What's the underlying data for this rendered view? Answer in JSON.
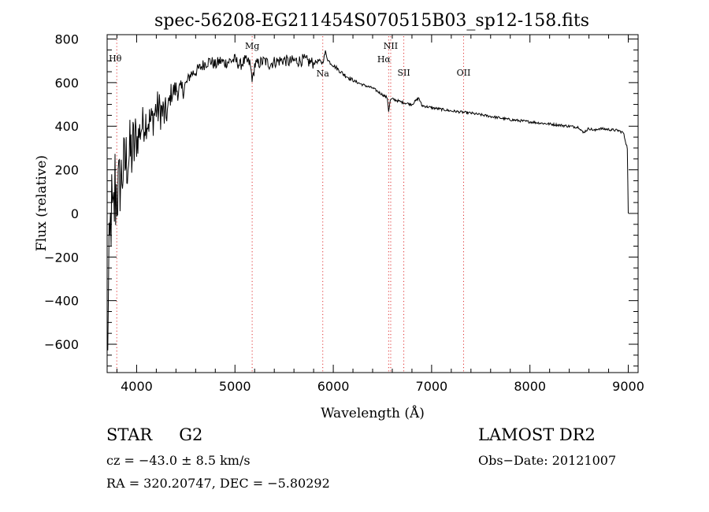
{
  "chart_data": {
    "type": "line",
    "title": "spec-56208-EG211454S070515B03_sp12-158.fits",
    "xlabel": "Wavelength (Å)",
    "ylabel": "Flux (relative)",
    "xlim": [
      3700,
      9100
    ],
    "ylim": [
      -730,
      820
    ],
    "xticks": [
      4000,
      5000,
      6000,
      7000,
      8000,
      9000
    ],
    "yticks": [
      -600,
      -400,
      -200,
      0,
      200,
      400,
      600,
      800
    ],
    "grid": false,
    "series": [
      {
        "x": [
          3700,
          3720,
          3740,
          3760,
          3780,
          3800,
          3850,
          3900,
          3950,
          4000,
          4050,
          4100,
          4150,
          4200,
          4250,
          4300,
          4350,
          4400,
          4450,
          4500,
          4550,
          4600,
          4650,
          4700,
          4750,
          4800,
          4850,
          4900,
          4950,
          5000,
          5050,
          5100,
          5150,
          5180,
          5200,
          5250,
          5300,
          5350,
          5400,
          5450,
          5500,
          5550,
          5600,
          5650,
          5700,
          5750,
          5800,
          5850,
          5890,
          5920,
          5950,
          6000,
          6050,
          6100,
          6200,
          6300,
          6400,
          6500,
          6550,
          6563,
          6580,
          6600,
          6700,
          6800,
          6870,
          6900,
          7000,
          7200,
          7400,
          7600,
          7800,
          8000,
          8200,
          8400,
          8500,
          8540,
          8600,
          8662,
          8700,
          8800,
          8900,
          8950,
          8990,
          9000
        ],
        "values": [
          -640,
          -300,
          20,
          -100,
          120,
          80,
          180,
          250,
          280,
          330,
          400,
          430,
          420,
          480,
          470,
          440,
          550,
          570,
          560,
          590,
          640,
          650,
          670,
          690,
          700,
          680,
          700,
          690,
          700,
          705,
          680,
          700,
          690,
          610,
          680,
          690,
          700,
          685,
          695,
          700,
          705,
          695,
          700,
          700,
          705,
          695,
          690,
          700,
          690,
          740,
          700,
          680,
          660,
          640,
          610,
          590,
          575,
          545,
          530,
          470,
          520,
          525,
          510,
          500,
          530,
          495,
          485,
          470,
          460,
          445,
          430,
          420,
          410,
          400,
          395,
          370,
          390,
          380,
          390,
          385,
          380,
          370,
          300,
          0
        ]
      }
    ],
    "annotations": [
      {
        "label": "Hθ",
        "x": 3798
      },
      {
        "label": "Mg",
        "x": 5175
      },
      {
        "label": "Na",
        "x": 5893
      },
      {
        "label": "NII",
        "x": 6584
      },
      {
        "label": "Hα",
        "x": 6563
      },
      {
        "label": "SII",
        "x": 6717
      },
      {
        "label": "OII",
        "x": 7325
      }
    ]
  },
  "info": {
    "object_class": "STAR",
    "subclass": "G2",
    "cz": "cz = −43.0 ± 8.5 km/s",
    "radec": "RA = 320.20747, DEC =  −5.80292",
    "survey": "LAMOST DR2",
    "obs_date": "Obs−Date: 20121007"
  },
  "colors": {
    "line_markers": "#e03030",
    "spectrum": "#000000",
    "axes": "#000000"
  }
}
